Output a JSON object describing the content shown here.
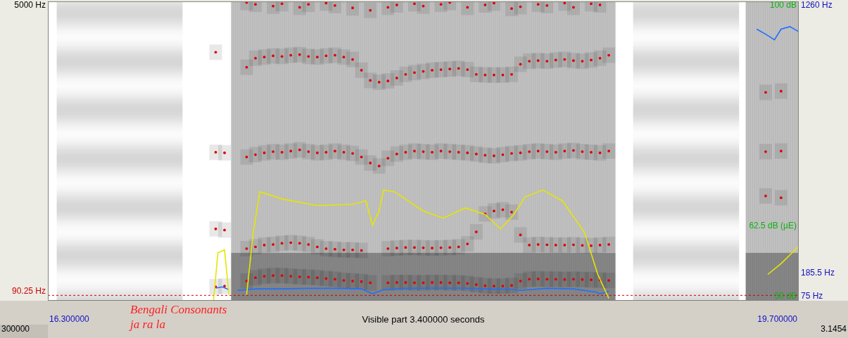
{
  "chart_data": {
    "type": "scatter",
    "annotation": [
      "Bengali Consonants",
      "ja ra la"
    ],
    "footer": {
      "left": "300000",
      "center": "Visible part 3.400000 seconds",
      "right": "3.1454"
    },
    "xlim": [
      16.3,
      19.7
    ],
    "xticks": [
      {
        "value": 16.3,
        "label": "16.300000"
      },
      {
        "value": 19.7,
        "label": "19.700000"
      }
    ],
    "ylim": [
      0,
      5000
    ],
    "yticks": [
      {
        "value": 5000,
        "label": "5000 Hz"
      }
    ],
    "cursor": {
      "value": 90.25,
      "label": "90.25 Hz"
    },
    "y2lim": [
      75,
      1260
    ],
    "y2ticks": [
      {
        "value": 75,
        "label": "75 Hz"
      },
      {
        "value": 185.5,
        "label": "185.5 Hz"
      },
      {
        "value": 1260,
        "label": "1260 Hz"
      }
    ],
    "y3lim": [
      50,
      100
    ],
    "y3ticks": [
      {
        "value": 50,
        "label": "50 dB"
      },
      {
        "value": 62.5,
        "label": "62.5 dB (µE)"
      },
      {
        "value": 100,
        "label": "100 dB"
      }
    ],
    "grid": false,
    "spectrogram": {
      "noise": [
        [
          16.34,
          16.91
        ],
        [
          18.95,
          19.43
        ]
      ],
      "voiced": [
        [
          17.13,
          18.87
        ],
        [
          19.46,
          19.7
        ]
      ]
    },
    "series": [
      {
        "color": "#e6e600",
        "line_style": "solid",
        "marker": "none",
        "axis": "y3",
        "x": [
          17.05,
          17.07,
          17.1,
          17.12,
          17.16,
          17.2,
          17.23,
          17.26,
          17.36,
          17.52,
          17.68,
          17.74,
          17.77,
          17.8,
          17.82,
          17.87,
          18.0,
          18.09,
          18.19,
          18.28,
          18.35,
          18.41,
          18.46,
          18.54,
          18.63,
          18.73,
          18.79,
          18.84,
          19.2,
          19.56,
          19.62,
          19.7
        ],
        "values": [
          50,
          58,
          58.5,
          51,
          null,
          51,
          61.4,
          68.2,
          67,
          65.9,
          66.1,
          66.7,
          62.6,
          65,
          68.5,
          68.2,
          65,
          63.8,
          65.5,
          64.4,
          62,
          64.4,
          67.3,
          68.5,
          66.7,
          61.4,
          54.4,
          50.4,
          null,
          54.4,
          56.2,
          59.1
        ]
      },
      {
        "color": "#1f6fff",
        "line_style": "solid",
        "marker": "none",
        "axis": "y2",
        "x": [
          17.06,
          17.09,
          17.12,
          17.14,
          17.16,
          17.24,
          17.36,
          17.48,
          17.6,
          17.72,
          17.77,
          17.82,
          17.92,
          18.04,
          18.16,
          18.28,
          18.4,
          18.44,
          18.56,
          18.68,
          18.78,
          18.8,
          18.84,
          19.2,
          19.51,
          19.55,
          19.59,
          19.62,
          19.66,
          19.7
        ],
        "values": [
          125,
          130,
          119,
          null,
          116,
          122,
          122,
          124,
          124,
          122,
          103,
          119,
          124,
          125,
          125,
          122,
          120,
          116,
          124,
          122,
          110,
          103,
          112,
          null,
          1150,
          1130,
          1108,
          1150,
          1160,
          1140
        ]
      },
      {
        "color": "#e00000",
        "line_style": "none",
        "marker": "dot",
        "axis": "y",
        "x": [
          17.06,
          17.1,
          17.16,
          17.2,
          17.24,
          17.28,
          17.32,
          17.36,
          17.4,
          17.44,
          17.48,
          17.52,
          17.56,
          17.6,
          17.64,
          17.68,
          17.72,
          17.76,
          17.8,
          17.84,
          17.88,
          17.92,
          17.96,
          18.0,
          18.04,
          18.08,
          18.12,
          18.16,
          18.2,
          18.24,
          18.28,
          18.32,
          18.36,
          18.4,
          18.44,
          18.48,
          18.52,
          18.56,
          18.6,
          18.64,
          18.68,
          18.72,
          18.76,
          18.8,
          18.84,
          19.55,
          19.62
        ],
        "values": [
          234,
          245,
          null,
          330,
          385,
          410,
          420,
          420,
          410,
          400,
          395,
          385,
          370,
          360,
          340,
          330,
          320,
          300,
          null,
          300,
          305,
          305,
          300,
          300,
          305,
          305,
          300,
          300,
          290,
          270,
          250,
          245,
          245,
          255,
          330,
          360,
          365,
          360,
          360,
          355,
          360,
          355,
          350,
          345,
          340,
          null,
          null
        ]
      },
      {
        "color": "#e00000",
        "line_style": "none",
        "marker": "dot",
        "axis": "y",
        "x": [
          17.06,
          17.1,
          17.16,
          17.2,
          17.24,
          17.28,
          17.32,
          17.36,
          17.4,
          17.44,
          17.48,
          17.52,
          17.56,
          17.6,
          17.64,
          17.68,
          17.72,
          17.76,
          17.8,
          17.84,
          17.88,
          17.92,
          17.96,
          18.0,
          18.04,
          18.08,
          18.12,
          18.16,
          18.2,
          18.24,
          18.28,
          18.32,
          18.36,
          18.4,
          18.44,
          18.48,
          18.52,
          18.56,
          18.6,
          18.64,
          18.68,
          18.72,
          18.76,
          18.8,
          18.84,
          19.55,
          19.62
        ],
        "values": [
          1200,
          1180,
          null,
          870,
          900,
          930,
          940,
          960,
          970,
          960,
          940,
          900,
          870,
          860,
          850,
          850,
          840,
          null,
          null,
          870,
          880,
          890,
          890,
          885,
          880,
          885,
          890,
          900,
          950,
          1150,
          1450,
          1500,
          1520,
          1480,
          1100,
          930,
          940,
          935,
          930,
          930,
          935,
          925,
          920,
          930,
          940,
          1750,
          1720
        ]
      },
      {
        "color": "#e00000",
        "line_style": "none",
        "marker": "dot",
        "axis": "y",
        "x": [
          17.06,
          17.1,
          17.16,
          17.2,
          17.24,
          17.28,
          17.32,
          17.36,
          17.4,
          17.44,
          17.48,
          17.52,
          17.56,
          17.6,
          17.64,
          17.68,
          17.72,
          17.76,
          17.8,
          17.84,
          17.88,
          17.92,
          17.96,
          18.0,
          18.04,
          18.08,
          18.12,
          18.16,
          18.2,
          18.24,
          18.28,
          18.32,
          18.36,
          18.4,
          18.44,
          18.48,
          18.52,
          18.56,
          18.6,
          18.64,
          18.68,
          18.72,
          18.76,
          18.8,
          18.84,
          19.55,
          19.62
        ],
        "values": [
          2480,
          2470,
          null,
          2400,
          2440,
          2470,
          2490,
          2480,
          2500,
          2520,
          2490,
          2470,
          2480,
          2500,
          2480,
          2460,
          2400,
          2300,
          2250,
          2380,
          2450,
          2480,
          2500,
          2490,
          2480,
          2500,
          2490,
          2480,
          2470,
          2450,
          2430,
          2420,
          2440,
          2460,
          2470,
          2490,
          2500,
          2490,
          2480,
          2500,
          2510,
          2490,
          2480,
          2470,
          2500,
          2490,
          2500
        ]
      },
      {
        "color": "#e00000",
        "line_style": "none",
        "marker": "dot",
        "axis": "y",
        "x": [
          17.06,
          17.1,
          17.16,
          17.2,
          17.24,
          17.28,
          17.32,
          17.36,
          17.4,
          17.44,
          17.48,
          17.52,
          17.56,
          17.6,
          17.64,
          17.68,
          17.72,
          17.76,
          17.8,
          17.84,
          17.88,
          17.92,
          17.96,
          18.0,
          18.04,
          18.08,
          18.12,
          18.16,
          18.2,
          18.24,
          18.28,
          18.32,
          18.36,
          18.4,
          18.44,
          18.48,
          18.52,
          18.56,
          18.6,
          18.64,
          18.68,
          18.72,
          18.76,
          18.8,
          18.84,
          19.55,
          19.62
        ],
        "values": [
          4150,
          null,
          null,
          3900,
          4050,
          4070,
          4090,
          4080,
          4100,
          4110,
          4080,
          4070,
          4090,
          4100,
          4070,
          4030,
          3850,
          3680,
          3650,
          3670,
          3720,
          3780,
          3810,
          3830,
          3850,
          3860,
          3870,
          3880,
          3860,
          3780,
          3770,
          3770,
          3770,
          3780,
          3950,
          4000,
          4010,
          4000,
          4020,
          4030,
          4010,
          4000,
          4020,
          4050,
          4100,
          3480,
          3500
        ]
      },
      {
        "color": "#e00000",
        "line_style": "none",
        "marker": "dot",
        "axis": "y",
        "x": [
          17.06,
          17.1,
          17.16,
          17.2,
          17.24,
          17.28,
          17.32,
          17.36,
          17.4,
          17.44,
          17.48,
          17.52,
          17.56,
          17.6,
          17.64,
          17.68,
          17.72,
          17.76,
          17.8,
          17.84,
          17.88,
          17.92,
          17.96,
          18.0,
          18.04,
          18.08,
          18.12,
          18.16,
          18.2,
          18.24,
          18.28,
          18.32,
          18.36,
          18.4,
          18.44,
          18.48,
          18.52,
          18.56,
          18.6,
          18.64,
          18.68,
          18.72,
          18.76,
          18.8,
          18.84,
          19.55,
          19.62
        ],
        "values": [
          null,
          null,
          null,
          4980,
          4950,
          null,
          4920,
          4960,
          null,
          4900,
          4950,
          null,
          4970,
          4930,
          null,
          4890,
          null,
          4850,
          null,
          4900,
          4940,
          null,
          4960,
          4920,
          null,
          4950,
          4980,
          null,
          4900,
          null,
          4940,
          4970,
          null,
          4880,
          4910,
          null,
          4950,
          4930,
          null,
          4970,
          4900,
          null,
          4960,
          4940,
          null,
          null,
          null
        ]
      }
    ]
  }
}
